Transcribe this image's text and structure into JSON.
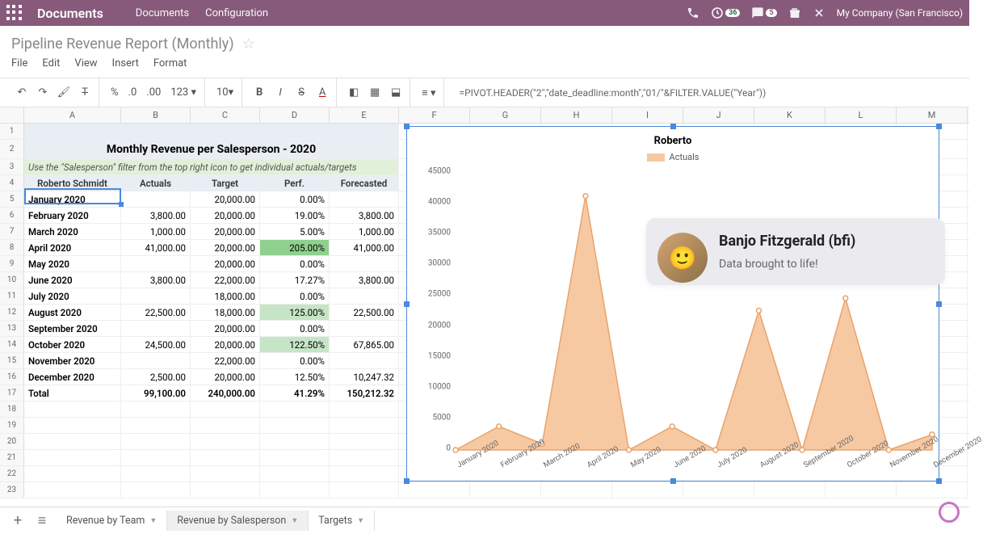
{
  "topbar": {
    "app_title": "Documents",
    "nav": [
      "Documents",
      "Configuration"
    ],
    "clock_badge": "36",
    "chat_badge": "5",
    "company": "My Company (San Francisco)"
  },
  "page_title": "Pipeline Revenue Report (Monthly)",
  "menus": [
    "File",
    "Edit",
    "View",
    "Insert",
    "Format"
  ],
  "toolbar": {
    "font_size": "10",
    "formula": "=PIVOT.HEADER(\"2\",\"date_deadline:month\",\"01/\"&FILTER.VALUE(\"Year\"))"
  },
  "columns": {
    "letters": [
      "A",
      "B",
      "C",
      "D",
      "E",
      "F",
      "G",
      "H",
      "I",
      "J",
      "K",
      "L",
      "M"
    ],
    "widths": [
      120,
      86,
      86,
      86,
      86,
      88,
      88,
      88,
      88,
      88,
      88,
      88,
      88
    ],
    "a_width": 120
  },
  "table": {
    "title": "Monthly Revenue per Salesperson - 2020",
    "hint": "Use the \"Salesperson\" filter from the top right icon to get individual actuals/targets",
    "salesperson": "Roberto Schmidt",
    "headers": [
      "Actuals",
      "Target",
      "Perf.",
      "Forecasted"
    ],
    "rows": [
      {
        "label": "January 2020",
        "actuals": "",
        "target": "20,000.00",
        "perf": "0.00%",
        "fc": ""
      },
      {
        "label": "February 2020",
        "actuals": "3,800.00",
        "target": "20,000.00",
        "perf": "19.00%",
        "fc": "3,800.00"
      },
      {
        "label": "March 2020",
        "actuals": "1,000.00",
        "target": "20,000.00",
        "perf": "5.00%",
        "fc": "1,000.00"
      },
      {
        "label": "April 2020",
        "actuals": "41,000.00",
        "target": "20,000.00",
        "perf": "205.00%",
        "fc": "41,000.00",
        "hi": true
      },
      {
        "label": "May 2020",
        "actuals": "",
        "target": "20,000.00",
        "perf": "0.00%",
        "fc": ""
      },
      {
        "label": "June 2020",
        "actuals": "3,800.00",
        "target": "22,000.00",
        "perf": "17.27%",
        "fc": "3,800.00"
      },
      {
        "label": "July 2020",
        "actuals": "",
        "target": "18,000.00",
        "perf": "0.00%",
        "fc": ""
      },
      {
        "label": "August 2020",
        "actuals": "22,500.00",
        "target": "18,000.00",
        "perf": "125.00%",
        "fc": "22,500.00",
        "med": true
      },
      {
        "label": "September 2020",
        "actuals": "",
        "target": "20,000.00",
        "perf": "0.00%",
        "fc": ""
      },
      {
        "label": "October 2020",
        "actuals": "24,500.00",
        "target": "20,000.00",
        "perf": "122.50%",
        "fc": "67,865.00",
        "med": true
      },
      {
        "label": "November 2020",
        "actuals": "",
        "target": "22,000.00",
        "perf": "0.00%",
        "fc": ""
      },
      {
        "label": "December 2020",
        "actuals": "2,500.00",
        "target": "20,000.00",
        "perf": "12.50%",
        "fc": "10,247.32"
      }
    ],
    "total": {
      "label": "Total",
      "actuals": "99,100.00",
      "target": "240,000.00",
      "perf": "41.29%",
      "fc": "150,212.32"
    }
  },
  "chart": {
    "title": "Roberto",
    "legend": "Actuals",
    "fill_color": "#f6c9a3",
    "stroke_color": "#e8a36b",
    "y_ticks": [
      0,
      5000,
      10000,
      15000,
      20000,
      25000,
      30000,
      35000,
      40000,
      45000
    ],
    "y_max": 45000,
    "x_labels": [
      "January 2020",
      "February 2020",
      "March 2020",
      "April 2020",
      "May 2020",
      "June 2020",
      "July 2020",
      "August 2020",
      "September 2020",
      "October 2020",
      "November 2020",
      "December 2020"
    ],
    "values": [
      0,
      3800,
      1000,
      41000,
      0,
      3800,
      0,
      22500,
      0,
      24500,
      0,
      2500
    ]
  },
  "bubble": {
    "name": "Banjo Fitzgerald (bfi)",
    "text": "Data brought to life!"
  },
  "sheets": {
    "tabs": [
      "Revenue by Team",
      "Revenue by Salesperson",
      "Targets"
    ],
    "active": 1
  },
  "visible_rows": 23
}
